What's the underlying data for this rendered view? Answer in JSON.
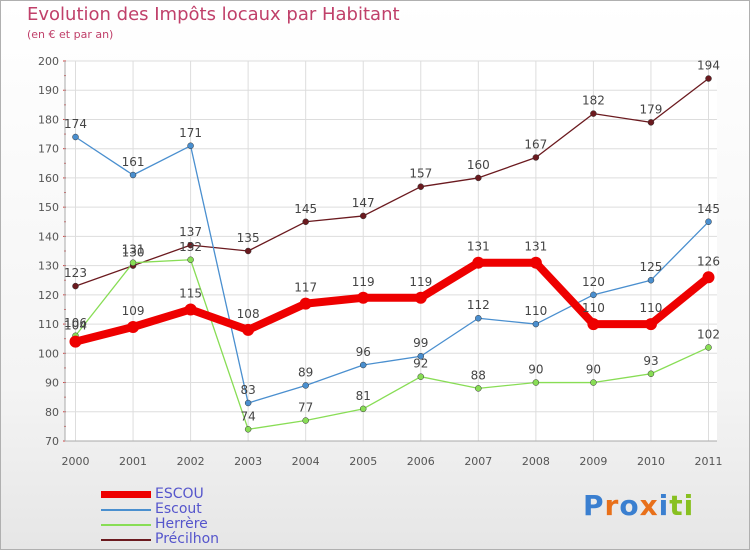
{
  "chart_data": {
    "type": "line",
    "title": "Evolution des Impôts locaux par Habitant",
    "subtitle": "(en € et par an)",
    "xlabel": "",
    "ylabel": "",
    "ylim": [
      70,
      200
    ],
    "yticks": [
      70,
      80,
      90,
      100,
      110,
      120,
      130,
      140,
      150,
      160,
      170,
      180,
      190,
      200
    ],
    "categories": [
      "2000",
      "2001",
      "2002",
      "2003",
      "2004",
      "2005",
      "2006",
      "2007",
      "2008",
      "2009",
      "2010",
      "2011"
    ],
    "series": [
      {
        "name": "Précilhon",
        "color": "#6b1a1f",
        "values": [
          123,
          130,
          137,
          135,
          145,
          147,
          157,
          160,
          167,
          182,
          179,
          194
        ]
      },
      {
        "name": "Escout",
        "color": "#4a8fcf",
        "values": [
          174,
          161,
          171,
          83,
          89,
          96,
          99,
          112,
          110,
          120,
          125,
          145
        ]
      },
      {
        "name": "Herrère",
        "color": "#88dd55",
        "values": [
          106,
          131,
          132,
          74,
          77,
          81,
          92,
          88,
          90,
          90,
          93,
          102
        ]
      },
      {
        "name": "ESCOU",
        "color": "#ee0000",
        "values": [
          104,
          109,
          115,
          108,
          117,
          119,
          119,
          131,
          131,
          110,
          110,
          126
        ]
      }
    ],
    "legend": [
      {
        "name": "ESCOU",
        "color": "#ee0000"
      },
      {
        "name": "Escout",
        "color": "#4a8fcf"
      },
      {
        "name": "Herrère",
        "color": "#88dd55"
      },
      {
        "name": "Précilhon",
        "color": "#6b1a1f"
      }
    ],
    "grid": true
  },
  "logo": {
    "text": "Proxiti",
    "colors": [
      "#3a7fd0",
      "#e8701a",
      "#3a7fd0",
      "#e8701a",
      "#3a7fd0",
      "#88c020",
      "#88c020"
    ]
  }
}
